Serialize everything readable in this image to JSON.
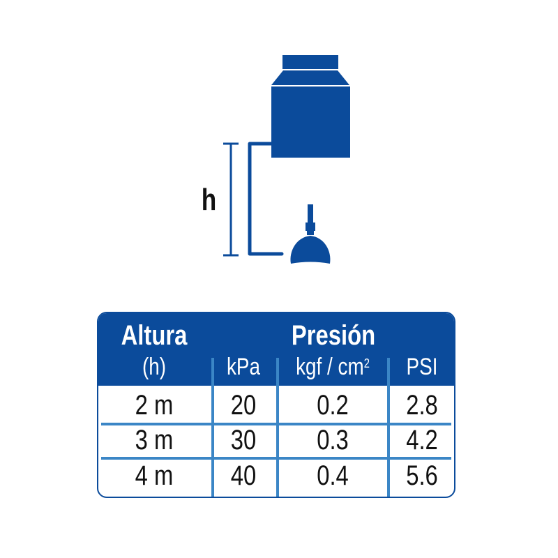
{
  "diagram": {
    "height_label": "h",
    "color": "#0b4b9b"
  },
  "table": {
    "header_color": "#0b4b9b",
    "divider_color": "#3b86c6",
    "altura": "Altura",
    "altura_sub": "(h)",
    "presion": "Presión",
    "units": {
      "kpa": "kPa",
      "kgf": "kgf / cm",
      "kgf_sup": "2",
      "psi": "PSI"
    },
    "rows": [
      {
        "altura": "2 m",
        "kpa": "20",
        "kgf": "0.2",
        "psi": "2.8"
      },
      {
        "altura": "3 m",
        "kpa": "30",
        "kgf": "0.3",
        "psi": "4.2"
      },
      {
        "altura": "4 m",
        "kpa": "40",
        "kgf": "0.4",
        "psi": "5.6"
      }
    ]
  }
}
